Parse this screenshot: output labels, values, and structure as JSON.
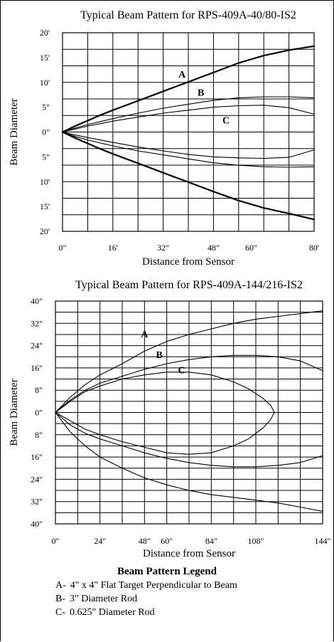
{
  "chart_data": [
    {
      "type": "line",
      "title": "Typical Beam Pattern for RPS-409A-40/80-IS2",
      "xlabel": "Distance from Sensor",
      "ylabel": "Beam Diameter",
      "x_ticks": [
        {
          "value": 0,
          "label": "0\""
        },
        {
          "value": 16,
          "label": "16'"
        },
        {
          "value": 32,
          "label": "32\""
        },
        {
          "value": 48,
          "label": "48\""
        },
        {
          "value": 60,
          "label": "60\""
        },
        {
          "value": 80,
          "label": "80'"
        }
      ],
      "y_ticks": [
        {
          "value": 20,
          "label": "20'"
        },
        {
          "value": 15,
          "label": "15'"
        },
        {
          "value": 10,
          "label": "10'"
        },
        {
          "value": 5,
          "label": "5\""
        },
        {
          "value": 0,
          "label": "0\""
        },
        {
          "value": -5,
          "label": "5\""
        },
        {
          "value": -10,
          "label": "10'"
        },
        {
          "value": -15,
          "label": "15'"
        },
        {
          "value": -20,
          "label": "20'"
        }
      ],
      "xlim": [
        0,
        80
      ],
      "ylim": [
        -20,
        20
      ],
      "grid": true,
      "series": [
        {
          "name": "A",
          "label_at": [
            38,
            11
          ],
          "width": 2.2,
          "upper": true,
          "x": [
            0,
            4,
            8,
            12,
            16,
            24,
            32,
            40,
            48,
            56,
            64,
            72,
            80
          ],
          "y": [
            0,
            1.2,
            2.3,
            3.4,
            4.4,
            6.3,
            8.2,
            10.1,
            12.0,
            13.9,
            15.4,
            16.5,
            17.3
          ]
        },
        {
          "name": "A",
          "width": 2.2,
          "upper": false,
          "x": [
            0,
            4,
            8,
            12,
            16,
            24,
            32,
            40,
            48,
            56,
            64,
            72,
            80
          ],
          "y": [
            0,
            -1.2,
            -2.3,
            -3.4,
            -4.4,
            -6.3,
            -8.2,
            -10.1,
            -12.0,
            -13.8,
            -15.3,
            -16.4,
            -17.6
          ]
        },
        {
          "name": "B",
          "label_at": [
            44,
            7.3
          ],
          "width": 1.1,
          "upper": true,
          "x": [
            0,
            4,
            8,
            16,
            24,
            32,
            40,
            48,
            56,
            64,
            72,
            80
          ],
          "y": [
            0,
            0.8,
            1.5,
            2.7,
            3.8,
            4.8,
            5.6,
            6.4,
            6.9,
            7.1,
            7.1,
            6.9
          ]
        },
        {
          "name": "B",
          "width": 1.1,
          "upper": false,
          "x": [
            0,
            4,
            8,
            16,
            24,
            32,
            40,
            48,
            56,
            64,
            72,
            80
          ],
          "y": [
            0,
            -0.9,
            -1.6,
            -2.8,
            -3.8,
            -4.6,
            -5.4,
            -6.2,
            -6.7,
            -7.0,
            -7.1,
            -7.0
          ]
        },
        {
          "name": "C",
          "label_at": [
            52,
            1.7
          ],
          "width": 1.1,
          "upper": true,
          "x": [
            0,
            4,
            8,
            16,
            24,
            32,
            40,
            48,
            56,
            64,
            72,
            80
          ],
          "y": [
            0,
            0.6,
            1.2,
            2.2,
            3.0,
            3.8,
            4.4,
            5.0,
            5.3,
            5.4,
            4.9,
            3.6
          ]
        },
        {
          "name": "C",
          "width": 1.1,
          "upper": false,
          "x": [
            0,
            4,
            8,
            16,
            24,
            32,
            40,
            48,
            56,
            64,
            72,
            80
          ],
          "y": [
            0,
            -0.6,
            -1.1,
            -2.1,
            -3.0,
            -3.8,
            -4.5,
            -5.0,
            -5.2,
            -5.3,
            -5.1,
            -3.6
          ]
        }
      ]
    },
    {
      "type": "line",
      "title": "Typical Beam Pattern for RPS-409A-144/216-IS2",
      "xlabel": "Distance from Sensor",
      "ylabel": "Beam Diameter",
      "x_ticks": [
        {
          "value": 0,
          "label": "0\""
        },
        {
          "value": 24,
          "label": "24\""
        },
        {
          "value": 48,
          "label": "48\""
        },
        {
          "value": 60,
          "label": "60\""
        },
        {
          "value": 84,
          "label": "84\""
        },
        {
          "value": 108,
          "label": "108\""
        },
        {
          "value": 144,
          "label": "144\""
        }
      ],
      "y_ticks": [
        {
          "value": 40,
          "label": "40\""
        },
        {
          "value": 32,
          "label": "32\""
        },
        {
          "value": 24,
          "label": "24\""
        },
        {
          "value": 16,
          "label": "16\""
        },
        {
          "value": 8,
          "label": "8\""
        },
        {
          "value": 0,
          "label": "0\""
        },
        {
          "value": -8,
          "label": "8\""
        },
        {
          "value": -16,
          "label": "16\""
        },
        {
          "value": -24,
          "label": "24\""
        },
        {
          "value": -32,
          "label": "32\""
        },
        {
          "value": -40,
          "label": "40\""
        }
      ],
      "xlim": [
        0,
        144
      ],
      "ylim": [
        -40,
        40
      ],
      "grid": true,
      "series": [
        {
          "name": "A",
          "label_at": [
            48,
            27
          ],
          "width": 1.1,
          "upper": true,
          "x": [
            0,
            8,
            16,
            24,
            36,
            48,
            60,
            72,
            84,
            96,
            108,
            120,
            132,
            144
          ],
          "y": [
            0,
            5.5,
            10,
            13.5,
            17.5,
            22,
            25.5,
            28,
            30,
            32,
            33.5,
            34.5,
            35.5,
            36.5
          ]
        },
        {
          "name": "A",
          "width": 1.1,
          "upper": false,
          "x": [
            0,
            8,
            16,
            24,
            36,
            48,
            60,
            72,
            84,
            96,
            108,
            120,
            132,
            144
          ],
          "y": [
            0,
            -7,
            -12,
            -16,
            -20,
            -23.5,
            -26,
            -28,
            -29.5,
            -30.5,
            -31.5,
            -32.5,
            -34,
            -35.5
          ]
        },
        {
          "name": "B",
          "label_at": [
            56,
            19.5
          ],
          "width": 1.1,
          "upper": true,
          "x": [
            0,
            8,
            16,
            24,
            36,
            48,
            60,
            72,
            84,
            96,
            108,
            120,
            132,
            144
          ],
          "y": [
            0,
            4.5,
            8,
            10.5,
            13,
            15.5,
            17.5,
            19,
            20,
            20.5,
            20.5,
            20,
            18.5,
            15
          ]
        },
        {
          "name": "B",
          "width": 1.1,
          "upper": false,
          "x": [
            0,
            8,
            16,
            24,
            36,
            48,
            60,
            72,
            84,
            96,
            108,
            120,
            132,
            144
          ],
          "y": [
            0,
            -4.5,
            -7.5,
            -9.5,
            -12,
            -14.5,
            -16.5,
            -18,
            -19,
            -19.5,
            -19.5,
            -19,
            -18,
            -15.5
          ]
        },
        {
          "name": "C",
          "label_at": [
            68,
            14
          ],
          "width": 1.1,
          "upper": true,
          "x": [
            0,
            8,
            16,
            24,
            36,
            48,
            60,
            72,
            84,
            96,
            104,
            112,
            116,
            118
          ],
          "y": [
            0,
            4,
            7.5,
            9.5,
            12,
            13.5,
            14.5,
            14.5,
            13.5,
            11,
            8.5,
            5,
            2.5,
            0
          ]
        },
        {
          "name": "C",
          "width": 1.1,
          "upper": false,
          "x": [
            0,
            8,
            16,
            24,
            36,
            48,
            60,
            72,
            84,
            96,
            104,
            112,
            116,
            118
          ],
          "y": [
            0,
            -3,
            -6,
            -8,
            -10.5,
            -12.5,
            -14.5,
            -15,
            -14.5,
            -12,
            -9.5,
            -5.5,
            -2.5,
            0
          ]
        }
      ]
    }
  ],
  "legend": {
    "title": "Beam Pattern Legend",
    "items": [
      {
        "key": "A-",
        "text": "4\" x 4\" Flat Target Perpendicular to Beam"
      },
      {
        "key": "B-",
        "text": "3\" Diameter Rod"
      },
      {
        "key": "C-",
        "text": "0.625\" Diameter Rod"
      }
    ]
  }
}
